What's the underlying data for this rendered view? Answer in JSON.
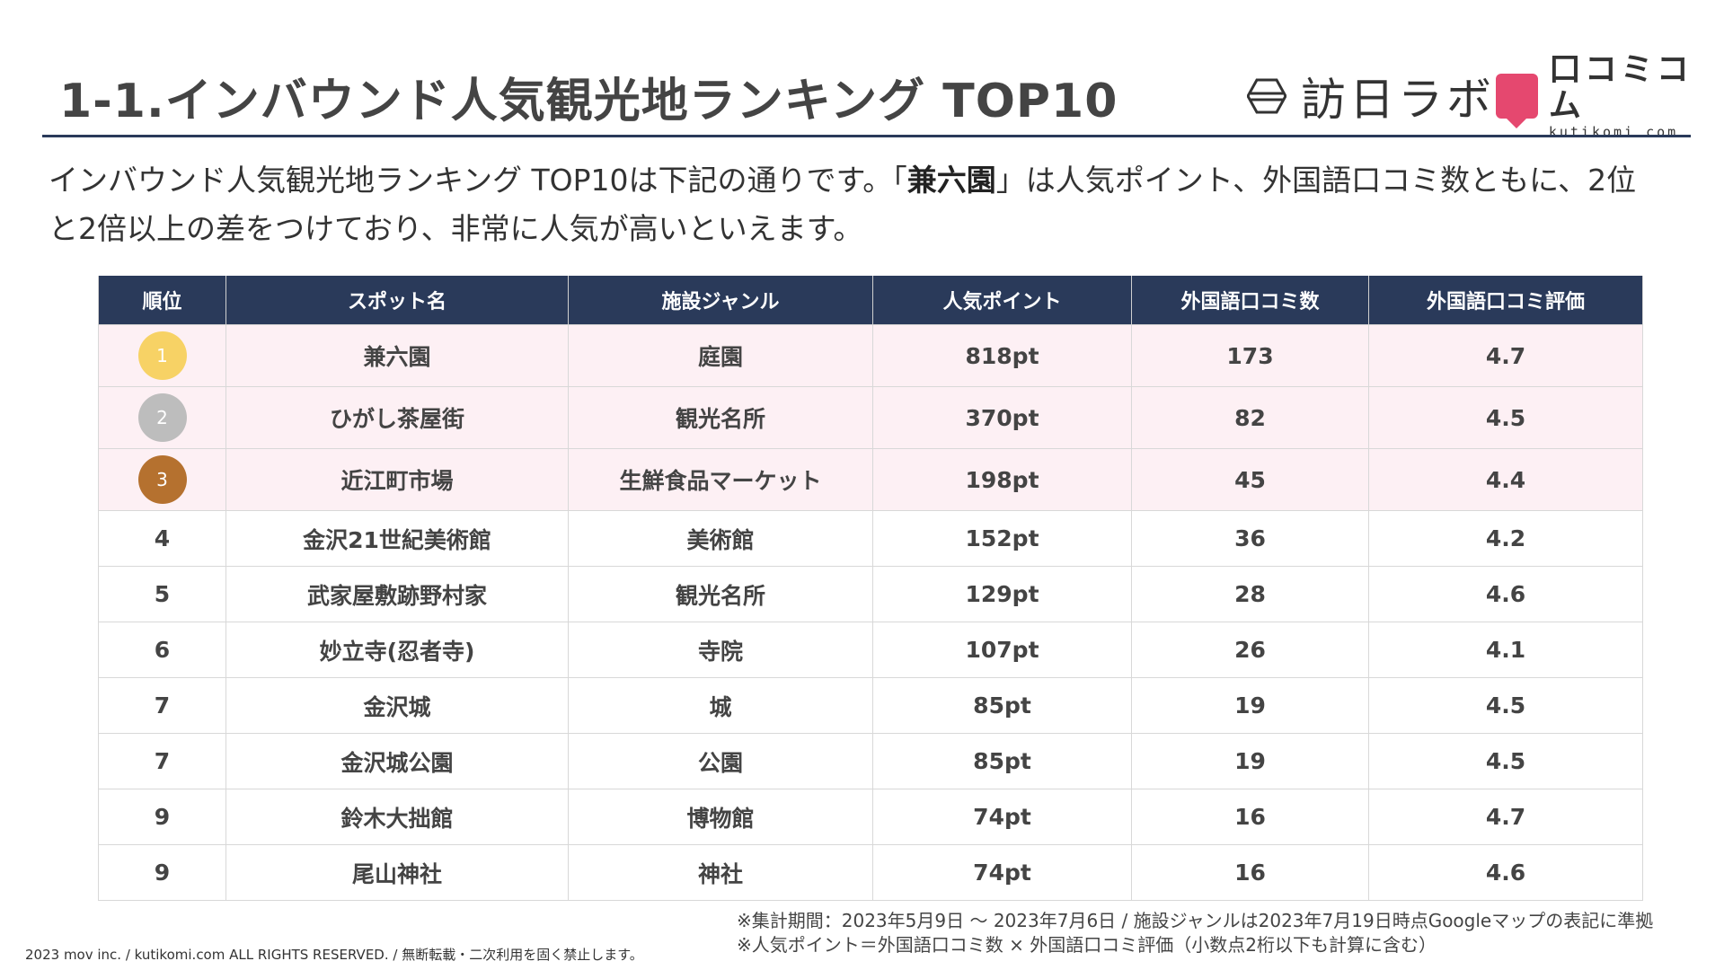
{
  "header": {
    "title": "1-1.インバウンド人気観光地ランキング TOP10",
    "brand_houjin": "訪日ラボ",
    "brand_kutikomi_jp": "口コミコム",
    "brand_kutikomi_en": "kutikomi com"
  },
  "description": {
    "part1": "インバウンド人気観光地ランキング TOP10は下記の通りです。「",
    "highlight": "兼六園",
    "part2": "」は人気ポイント、外国語口コミ数ともに、2位と2倍以上の差をつけており、非常に人気が高いといえます。"
  },
  "table": {
    "headers": [
      "順位",
      "スポット名",
      "施設ジャンル",
      "人気ポイント",
      "外国語口コミ数",
      "外国語口コミ評価"
    ],
    "rows": [
      {
        "rank": "1",
        "spot": "兼六園",
        "genre": "庭園",
        "points": "818pt",
        "reviews": "173",
        "rating": "4.7"
      },
      {
        "rank": "2",
        "spot": "ひがし茶屋街",
        "genre": "観光名所",
        "points": "370pt",
        "reviews": "82",
        "rating": "4.5"
      },
      {
        "rank": "3",
        "spot": "近江町市場",
        "genre": "生鮮食品マーケット",
        "points": "198pt",
        "reviews": "45",
        "rating": "4.4"
      },
      {
        "rank": "4",
        "spot": "金沢21世紀美術館",
        "genre": "美術館",
        "points": "152pt",
        "reviews": "36",
        "rating": "4.2"
      },
      {
        "rank": "5",
        "spot": "武家屋敷跡野村家",
        "genre": "観光名所",
        "points": "129pt",
        "reviews": "28",
        "rating": "4.6"
      },
      {
        "rank": "6",
        "spot": "妙立寺(忍者寺)",
        "genre": "寺院",
        "points": "107pt",
        "reviews": "26",
        "rating": "4.1"
      },
      {
        "rank": "7",
        "spot": "金沢城",
        "genre": "城",
        "points": "85pt",
        "reviews": "19",
        "rating": "4.5"
      },
      {
        "rank": "7",
        "spot": "金沢城公園",
        "genre": "公園",
        "points": "85pt",
        "reviews": "19",
        "rating": "4.5"
      },
      {
        "rank": "9",
        "spot": "鈴木大拙館",
        "genre": "博物館",
        "points": "74pt",
        "reviews": "16",
        "rating": "4.7"
      },
      {
        "rank": "9",
        "spot": "尾山神社",
        "genre": "神社",
        "points": "74pt",
        "reviews": "16",
        "rating": "4.6"
      }
    ]
  },
  "colors": {
    "header_bg": "#2a3a5a",
    "top3_row_bg": "#fdf0f4",
    "gold": "#f7d265",
    "silver": "#bdbdbd",
    "bronze": "#b5712f",
    "brand_pink": "#e5486f"
  },
  "footnotes": [
    "※集計期間：2023年5月9日 〜 2023年7月6日 / 施設ジャンルは2023年7月19日時点Googleマップの表記に準拠",
    "※人気ポイント＝外国語口コミ数 × 外国語口コミ評価（小数点2桁以下も計算に含む）"
  ],
  "copyright": "2023 mov inc. / kutikomi.com ALL RIGHTS RESERVED. / 無断転載・二次利用を固く禁止します。"
}
